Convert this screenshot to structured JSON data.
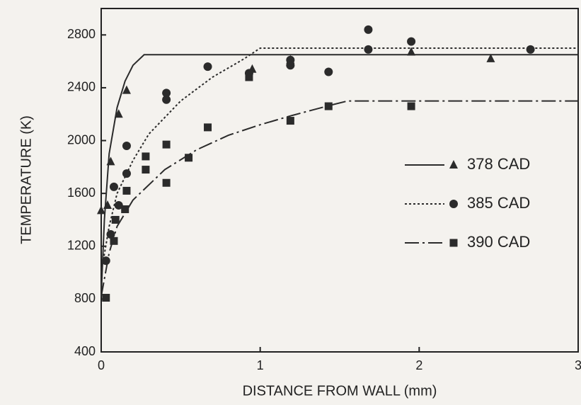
{
  "chart_data": {
    "type": "scatter",
    "xlabel": "DISTANCE FROM WALL (mm)",
    "ylabel": "TEMPERATURE (K)",
    "xlim": [
      0,
      3
    ],
    "ylim": [
      400,
      3000
    ],
    "xticks": [
      0,
      1,
      2,
      3
    ],
    "yticks": [
      400,
      800,
      1200,
      1600,
      2000,
      2400,
      2800
    ],
    "legend": "right",
    "series": [
      {
        "name": "378 CAD",
        "color": "#2b2b2b",
        "marker": "triangle",
        "line": "solid",
        "x": [
          0.0,
          0.04,
          0.06,
          0.11,
          0.16,
          0.95,
          1.19,
          1.95,
          2.45
        ],
        "y": [
          1470,
          1510,
          1840,
          2200,
          2380,
          2540,
          2610,
          2670,
          2620
        ],
        "curve_x": [
          0,
          0.02,
          0.05,
          0.1,
          0.15,
          0.2,
          0.27,
          3
        ],
        "curve_y": [
          830,
          1400,
          1900,
          2250,
          2450,
          2570,
          2650,
          2650
        ]
      },
      {
        "name": "385 CAD",
        "color": "#2b2b2b",
        "marker": "circle",
        "line": "dotted",
        "x": [
          0.03,
          0.06,
          0.08,
          0.11,
          0.16,
          0.16,
          0.41,
          0.41,
          0.67,
          0.93,
          1.19,
          1.19,
          1.43,
          1.68,
          1.68,
          1.95,
          2.7
        ],
        "y": [
          1090,
          1290,
          1650,
          1510,
          1960,
          1750,
          2360,
          2310,
          2560,
          2510,
          2610,
          2570,
          2520,
          2840,
          2690,
          2750,
          2690
        ],
        "curve_x": [
          0,
          0.05,
          0.1,
          0.2,
          0.3,
          0.5,
          0.7,
          0.9,
          1.0,
          3
        ],
        "curve_y": [
          1000,
          1350,
          1600,
          1850,
          2050,
          2300,
          2480,
          2620,
          2700,
          2700
        ]
      },
      {
        "name": "390 CAD",
        "color": "#2b2b2b",
        "marker": "square",
        "line": "dashdot",
        "x": [
          0.03,
          0.08,
          0.09,
          0.15,
          0.16,
          0.28,
          0.28,
          0.41,
          0.41,
          0.55,
          0.67,
          0.93,
          1.19,
          1.43,
          1.95
        ],
        "y": [
          810,
          1240,
          1400,
          1480,
          1620,
          1880,
          1780,
          1970,
          1680,
          1870,
          2100,
          2480,
          2150,
          2260,
          2260
        ],
        "curve_x": [
          0,
          0.05,
          0.1,
          0.2,
          0.4,
          0.6,
          0.8,
          1.0,
          1.2,
          1.45,
          1.55,
          3
        ],
        "curve_y": [
          820,
          1150,
          1350,
          1550,
          1780,
          1930,
          2040,
          2120,
          2190,
          2270,
          2300,
          2300
        ]
      }
    ]
  }
}
